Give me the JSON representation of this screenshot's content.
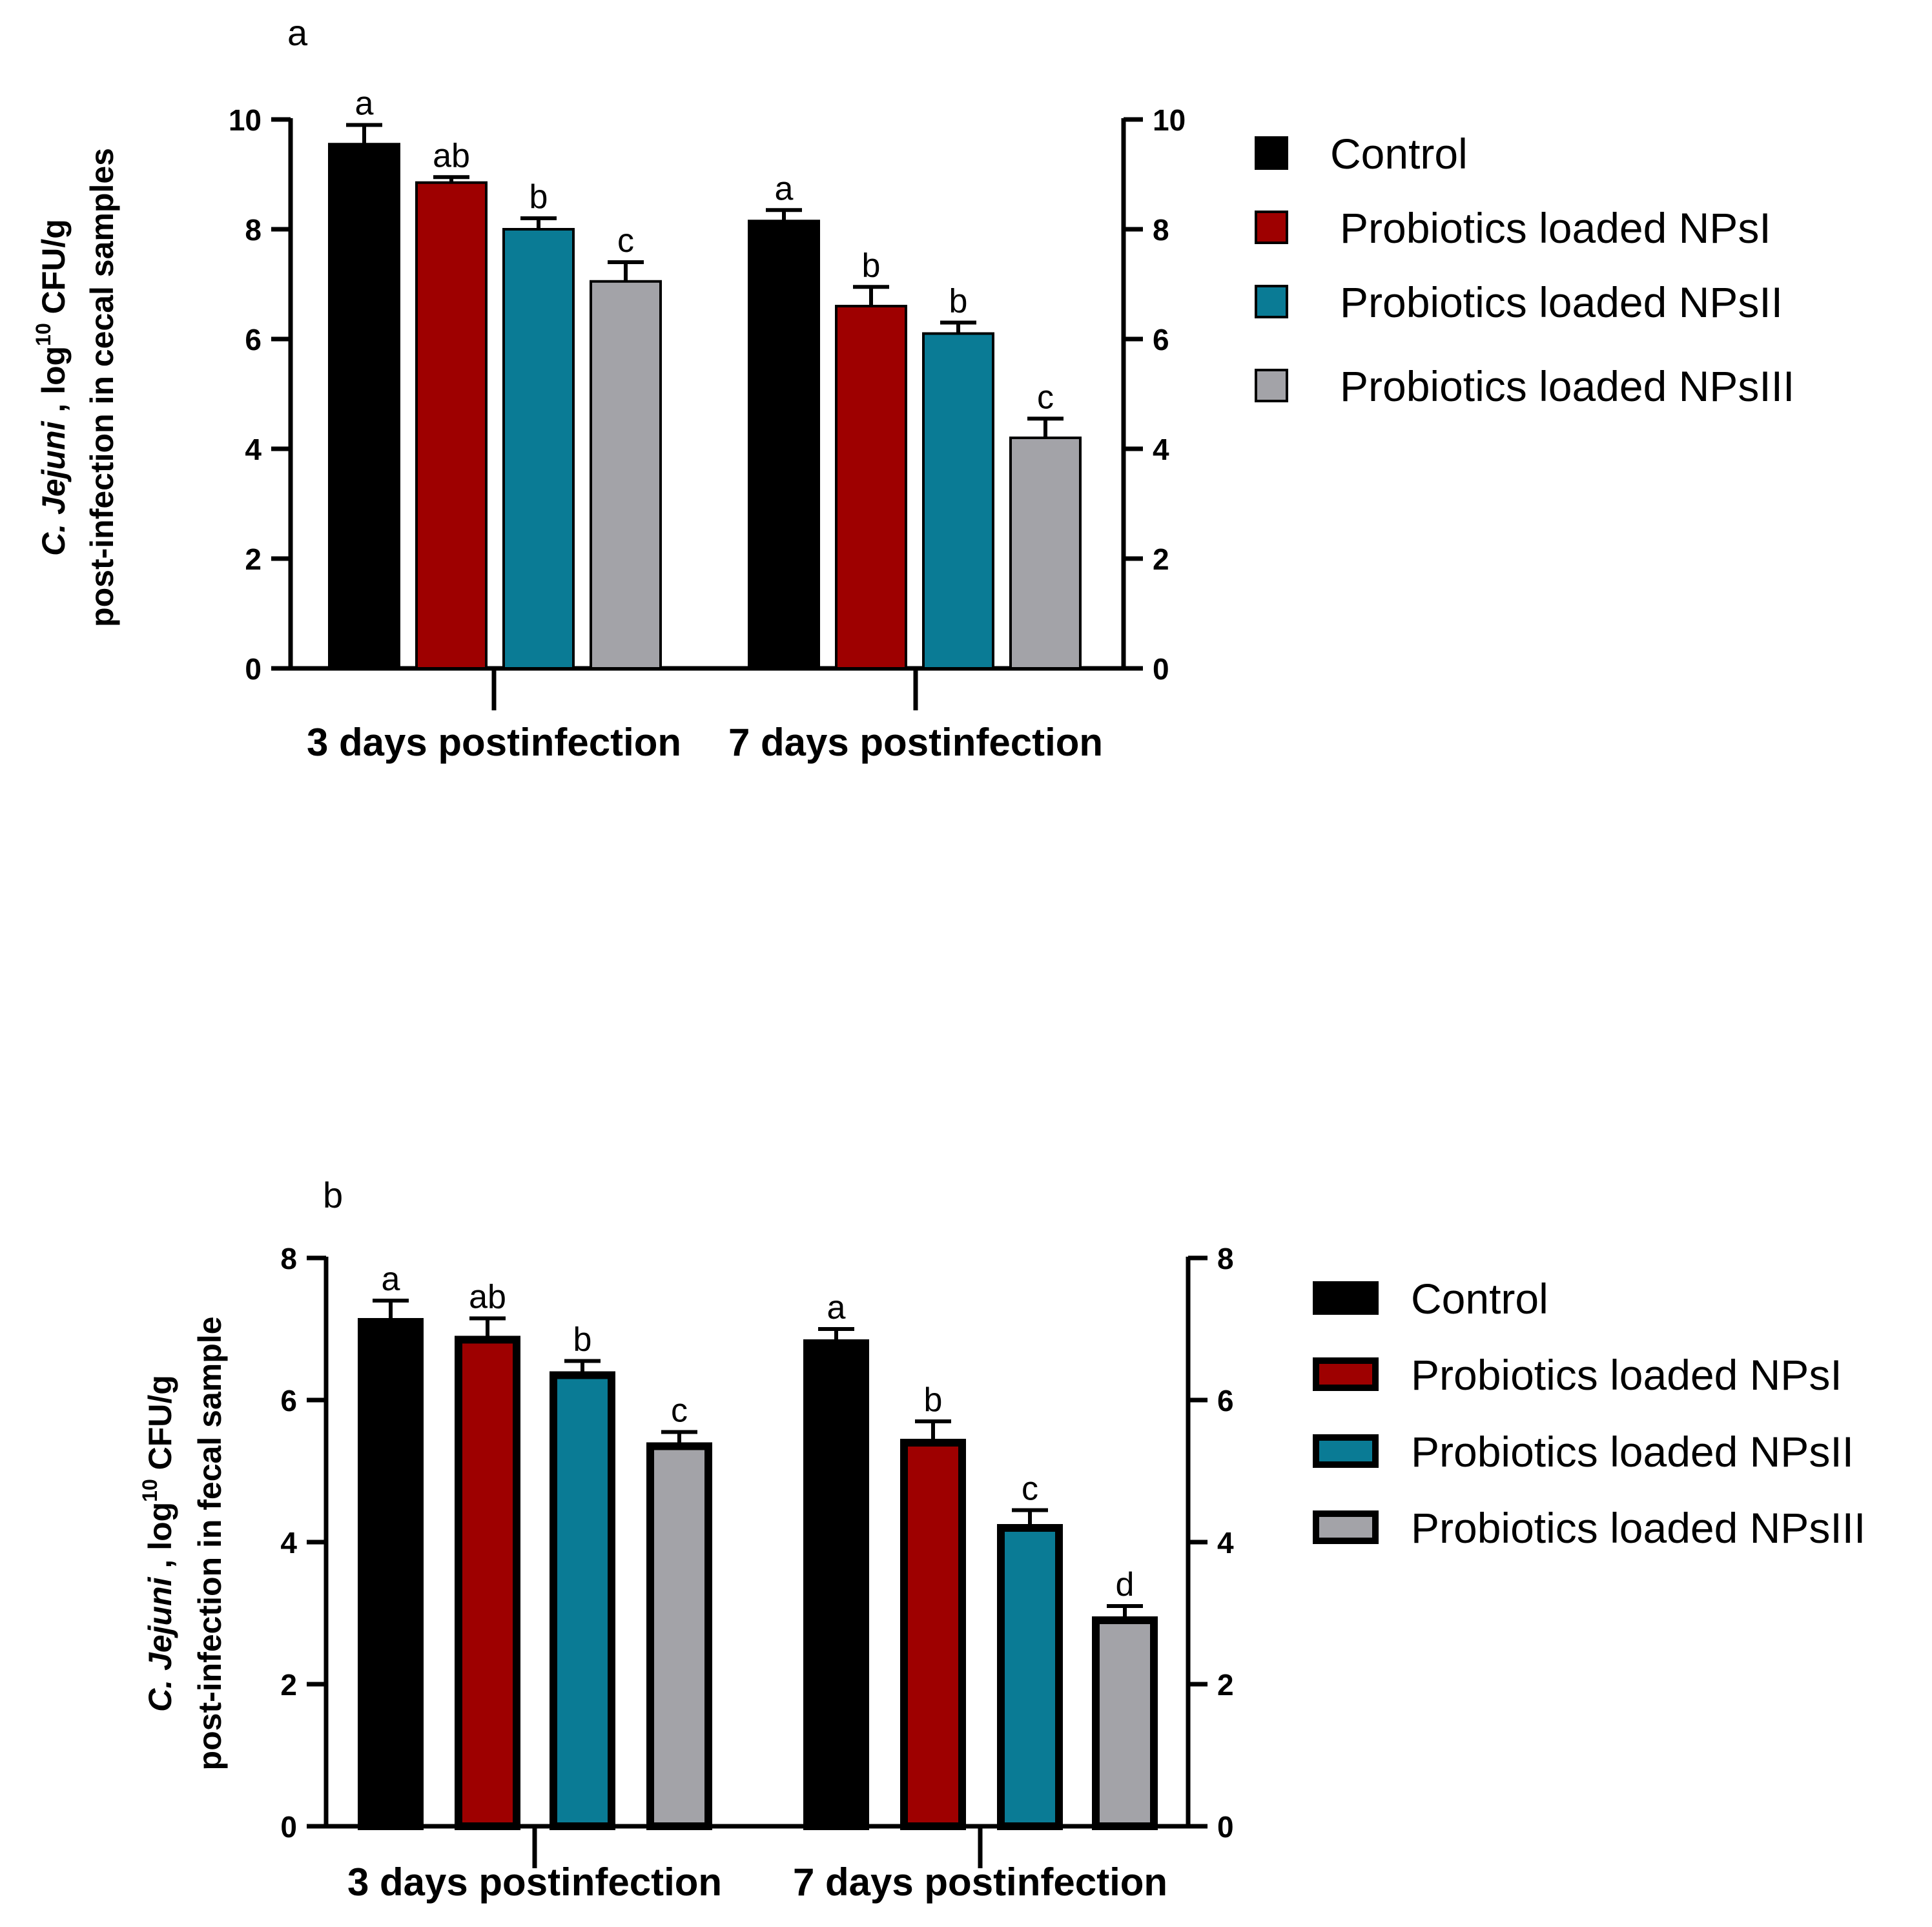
{
  "chart_data": [
    {
      "type": "bar",
      "panel_label": "a",
      "categories": [
        "3 days postinfection",
        "7 days postinfection"
      ],
      "series": [
        {
          "name": "Control",
          "color": "#000000",
          "values": [
            9.55,
            8.15
          ],
          "errors": [
            0.35,
            0.2
          ],
          "significance": [
            "a",
            "a"
          ]
        },
        {
          "name": "Probiotics loaded NPsI",
          "color": "#9e0000",
          "values": [
            8.85,
            6.6
          ],
          "errors": [
            0.1,
            0.35
          ],
          "significance": [
            "ab",
            "b"
          ]
        },
        {
          "name": "Probiotics loaded NPsII",
          "color": "#0a7b95",
          "values": [
            8.0,
            6.1
          ],
          "errors": [
            0.2,
            0.2
          ],
          "significance": [
            "b",
            "b"
          ]
        },
        {
          "name": "Probiotics loaded NPsIII",
          "color": "#a3a3a8",
          "values": [
            7.05,
            4.2
          ],
          "errors": [
            0.35,
            0.35
          ],
          "significance": [
            "c",
            "c"
          ]
        }
      ],
      "ylim": [
        0,
        10
      ],
      "yticks": [
        0,
        2,
        4,
        6,
        8,
        10
      ],
      "ylabel": {
        "organism": "C. Jejuni",
        "unit_prefix": " , log",
        "unit_sup": "10",
        "unit_suffix": " CFU/g",
        "line2": "post-infection in cecal samples"
      },
      "legend_position": "right"
    },
    {
      "type": "bar",
      "panel_label": "b",
      "categories": [
        "3 days postinfection",
        "7 days postinfection"
      ],
      "series": [
        {
          "name": "Control",
          "color": "#000000",
          "values": [
            7.1,
            6.8
          ],
          "errors": [
            0.3,
            0.2
          ],
          "significance": [
            "a",
            "a"
          ]
        },
        {
          "name": "Probiotics loaded NPsI",
          "color": "#9e0000",
          "values": [
            6.85,
            5.4
          ],
          "errors": [
            0.3,
            0.3
          ],
          "significance": [
            "ab",
            "b"
          ]
        },
        {
          "name": "Probiotics loaded NPsII",
          "color": "#0a7b95",
          "values": [
            6.35,
            4.2
          ],
          "errors": [
            0.2,
            0.25
          ],
          "significance": [
            "b",
            "c"
          ]
        },
        {
          "name": "Probiotics loaded NPsIII",
          "color": "#a3a3a8",
          "values": [
            5.35,
            2.9
          ],
          "errors": [
            0.2,
            0.2
          ],
          "significance": [
            "c",
            "d"
          ]
        }
      ],
      "ylim": [
        0,
        8
      ],
      "yticks": [
        0,
        2,
        4,
        6,
        8
      ],
      "ylabel": {
        "organism": "C. Jejuni",
        "unit_prefix": " , log",
        "unit_sup": "10",
        "unit_suffix": " CFU/g",
        "line2": "post-infection in fecal sample"
      },
      "legend_position": "right"
    }
  ]
}
